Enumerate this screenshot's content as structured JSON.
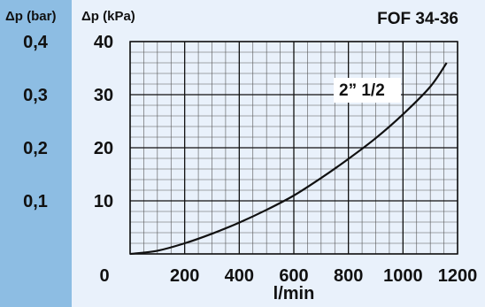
{
  "chart_data": {
    "type": "line",
    "title": "FOF 34-36",
    "xlabel": "l/min",
    "ylabel": "Δp (kPa)",
    "y2label": "Δp (bar)",
    "xlim": [
      0,
      1200
    ],
    "ylim": [
      0,
      40
    ],
    "grid": true,
    "x_ticks": [
      "0",
      "200",
      "400",
      "600",
      "800",
      "1000",
      "1200"
    ],
    "x_tick_values": [
      0,
      200,
      400,
      600,
      800,
      1000,
      1200
    ],
    "y_ticks": [
      "10",
      "20",
      "30",
      "40"
    ],
    "y_tick_values": [
      10,
      20,
      30,
      40
    ],
    "y2_ticks": [
      "0,1",
      "0,2",
      "0,3",
      "0,4"
    ],
    "y2_tick_values": [
      0.1,
      0.2,
      0.3,
      0.4
    ],
    "series": [
      {
        "name": "2” 1/2",
        "x": [
          0,
          100,
          200,
          300,
          400,
          500,
          600,
          700,
          800,
          900,
          1000,
          1100,
          1160
        ],
        "values": [
          0,
          0.6,
          2.0,
          3.8,
          5.9,
          8.3,
          11.0,
          14.3,
          17.9,
          21.8,
          26.3,
          31.5,
          36.0
        ]
      }
    ],
    "colors": {
      "curve": "#111111",
      "grid": "#222222",
      "side": "#8dbde3",
      "background": "#e9f1fb"
    }
  }
}
